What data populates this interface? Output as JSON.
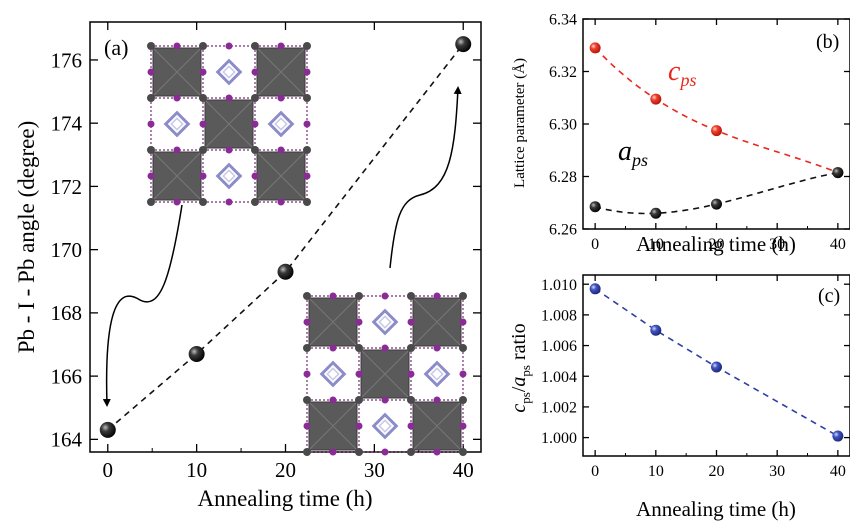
{
  "chart_data": [
    {
      "type": "scatter",
      "panel_label": "(a)",
      "xlabel": "Annealing time (h)",
      "ylabel": "Pb - I - Pb angle (degree)",
      "xlim": [
        -2,
        42
      ],
      "ylim": [
        163.6,
        177.2
      ],
      "xticks": [
        0,
        10,
        20,
        30,
        40
      ],
      "yticks": [
        164,
        166,
        168,
        170,
        172,
        174,
        176
      ],
      "series": [
        {
          "x": [
            0,
            10,
            20,
            40
          ],
          "y": [
            164.3,
            166.7,
            169.3,
            176.5
          ],
          "color": "#111111",
          "line_style": "dashed"
        }
      ],
      "insets": [
        "perovskite-structure-top",
        "perovskite-structure-bottom"
      ]
    },
    {
      "type": "scatter",
      "panel_label": "(b)",
      "xlabel": "Annealing time (h)",
      "ylabel": "Lattice parameter (Å)",
      "xlim": [
        -2,
        42
      ],
      "ylim": [
        6.26,
        6.34
      ],
      "xticks": [
        0,
        10,
        20,
        30,
        40
      ],
      "yticks": [
        6.26,
        6.28,
        6.3,
        6.32,
        6.34
      ],
      "series": [
        {
          "name_main": "c",
          "name_sub": "ps",
          "x": [
            0,
            10,
            20,
            40
          ],
          "y": [
            6.329,
            6.3095,
            6.2975,
            6.2815
          ],
          "color": "#e8281e"
        },
        {
          "name_main": "a",
          "name_sub": "ps",
          "x": [
            0,
            10,
            20,
            40
          ],
          "y": [
            6.2685,
            6.266,
            6.2695,
            6.2815
          ],
          "color": "#111111"
        }
      ]
    },
    {
      "type": "scatter",
      "panel_label": "(c)",
      "xlabel": "Annealing time (h)",
      "ylabel_parts": {
        "c": "c",
        "sub1": "ps",
        "slash": "/",
        "a": "a",
        "sub2": "ps",
        "rest": " ratio"
      },
      "xlim": [
        -2,
        42
      ],
      "ylim": [
        0.9988,
        1.0106
      ],
      "xticks": [
        0,
        10,
        20,
        30,
        40
      ],
      "yticks": [
        "1.010",
        "1.008",
        "1.006",
        "1.004",
        "1.002",
        "1.000"
      ],
      "series": [
        {
          "x": [
            0,
            10,
            20,
            40
          ],
          "y": [
            1.0097,
            1.007,
            1.0046,
            1.0001
          ],
          "color": "#2c3fa8",
          "line_style": "dashed"
        }
      ]
    }
  ]
}
